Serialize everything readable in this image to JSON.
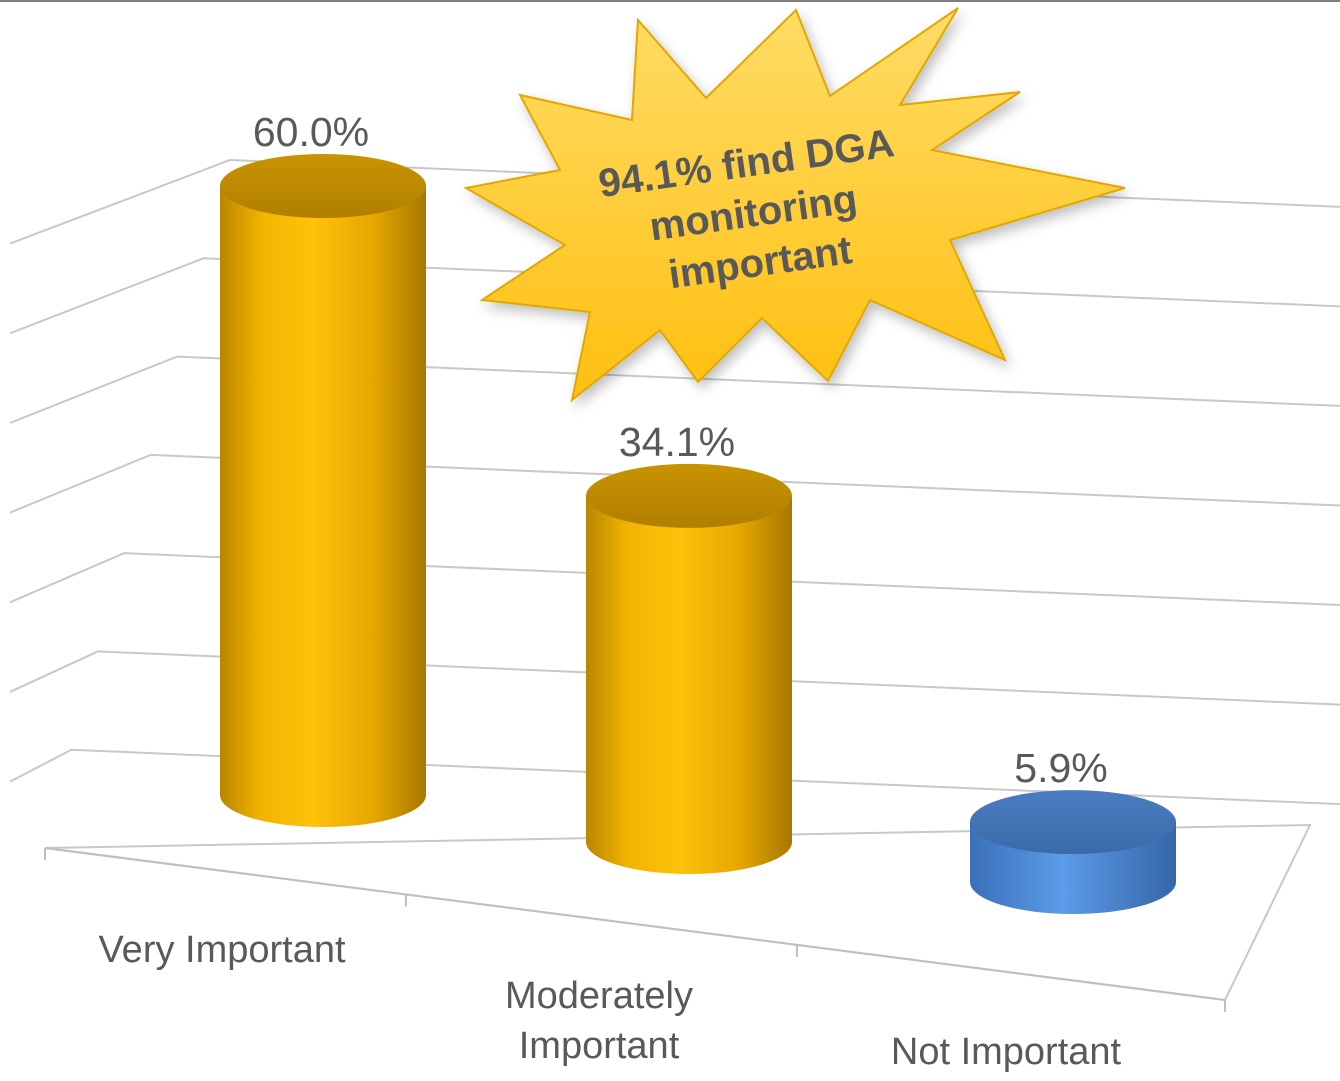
{
  "chart_data": {
    "type": "bar",
    "style": "3d-cylinder",
    "categories": [
      "Very Important",
      "Moderately Important",
      "Not Important"
    ],
    "category_lines": [
      [
        "Very Important"
      ],
      [
        "Moderately",
        "Important"
      ],
      [
        "Not Important"
      ]
    ],
    "values": [
      60.0,
      34.1,
      5.9
    ],
    "data_labels": [
      "60.0%",
      "34.1%",
      "5.9%"
    ],
    "bar_colors": [
      "#FFC000",
      "#FFC000",
      "#4F8FD9"
    ],
    "title": "",
    "xlabel": "",
    "ylabel": "",
    "ylim": [
      0,
      70
    ],
    "grid": true,
    "legend": "none",
    "callout": {
      "shape": "starburst",
      "lines": [
        "94.1% find DGA",
        "monitoring",
        "important"
      ],
      "fill": "#FFC000",
      "text_color": "#595959"
    }
  }
}
